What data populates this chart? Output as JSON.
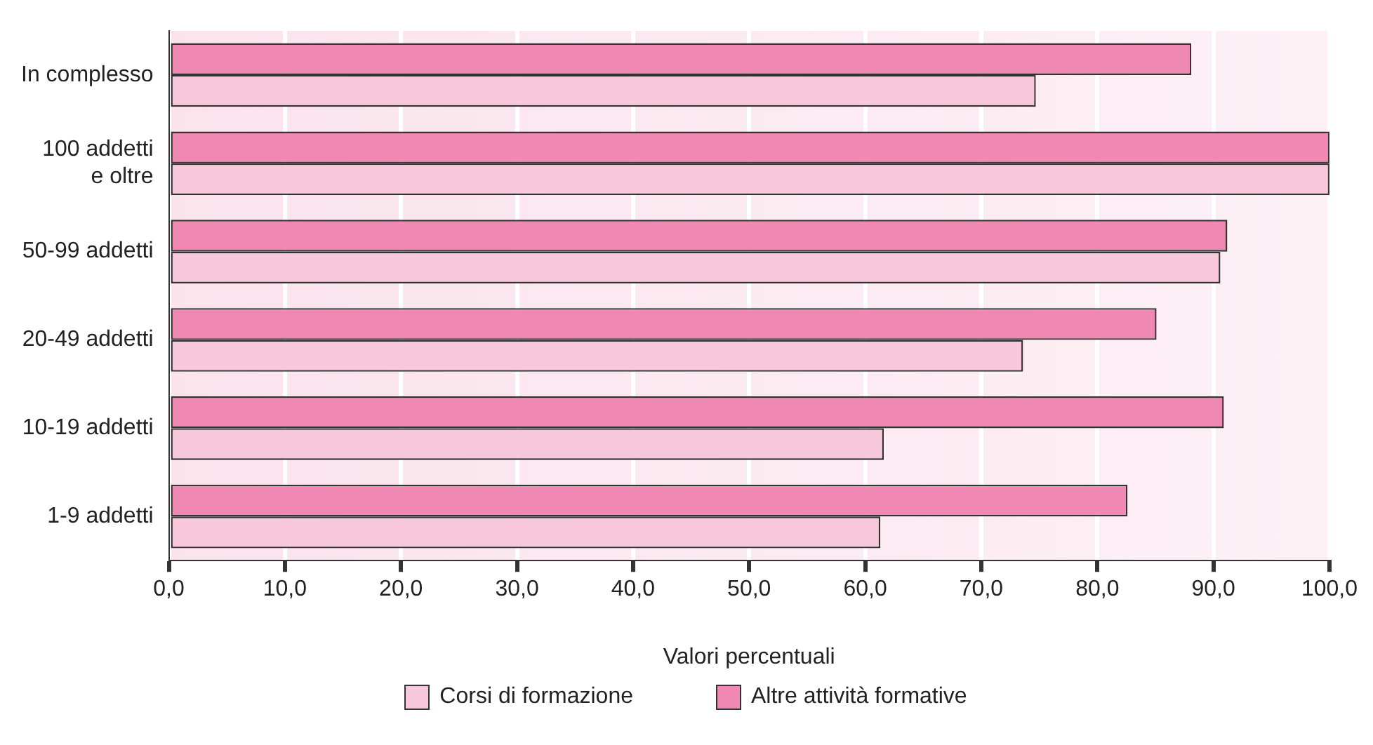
{
  "chart_data": {
    "type": "bar",
    "orientation": "horizontal",
    "categories": [
      "In complesso",
      "100 addetti e oltre",
      "50-99 addetti",
      "20-49 addetti",
      "10-19 addetti",
      "1-9 addetti"
    ],
    "series": [
      {
        "name": "Altre attività formative",
        "color": "#f088b4",
        "values": [
          88.1,
          100.0,
          91.2,
          85.1,
          90.9,
          82.6
        ]
      },
      {
        "name": "Corsi di formazione",
        "color": "#f7c8dc",
        "values": [
          74.7,
          100.0,
          90.6,
          73.6,
          61.6,
          61.3
        ]
      }
    ],
    "xlim": [
      0,
      100
    ],
    "xticks": [
      {
        "value": 0,
        "label": "0,0"
      },
      {
        "value": 10,
        "label": "10,0"
      },
      {
        "value": 20,
        "label": "20,0"
      },
      {
        "value": 30,
        "label": "30,0"
      },
      {
        "value": 40,
        "label": "40,0"
      },
      {
        "value": 50,
        "label": "50,0"
      },
      {
        "value": 60,
        "label": "60,0"
      },
      {
        "value": 70,
        "label": "70,0"
      },
      {
        "value": 80,
        "label": "80,0"
      },
      {
        "value": 90,
        "label": "90,0"
      },
      {
        "value": 100,
        "label": "100,0"
      }
    ],
    "xlabel": "Valori percentuali",
    "grid": "x",
    "legend": "bottom"
  }
}
